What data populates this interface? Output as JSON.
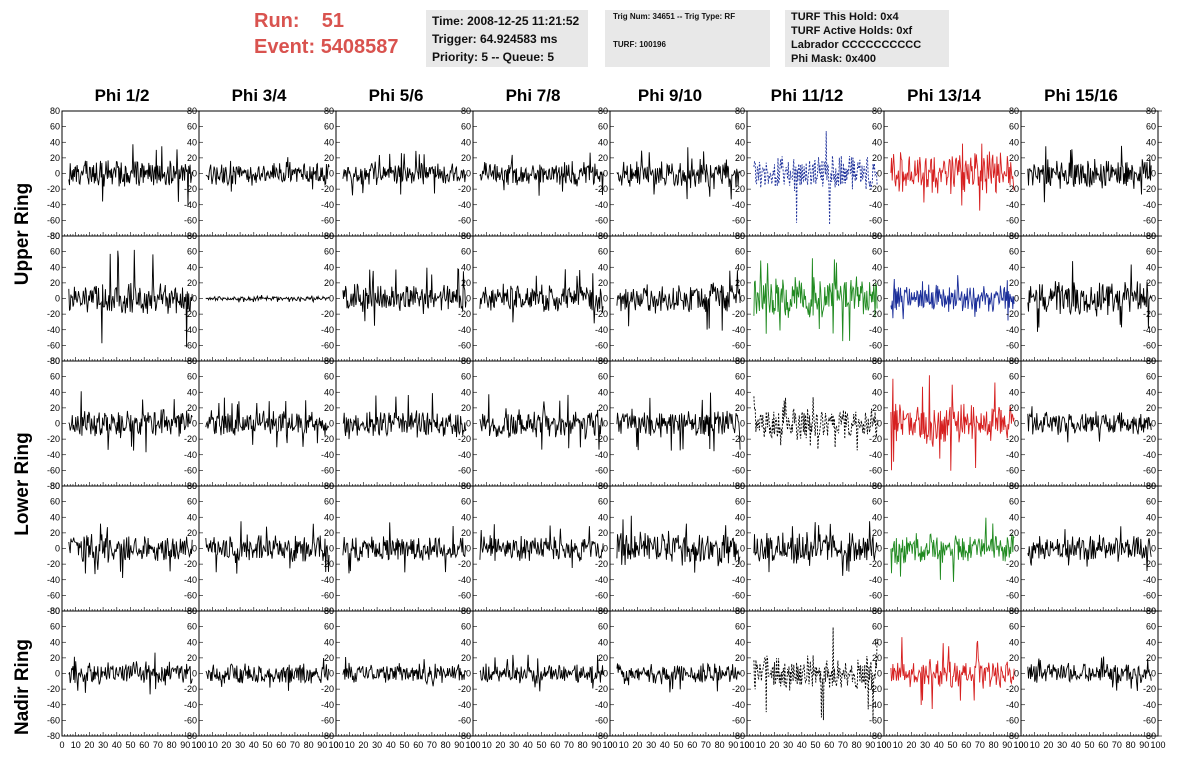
{
  "run": {
    "run_label": "Run:",
    "run_value": "51",
    "event_label": "Event:",
    "event_value": "5408587"
  },
  "info1": {
    "time": "Time: 2008-12-25 11:21:52",
    "trigger": "Trigger: 64.924583 ms",
    "priority": "Priority: 5 -- Queue: 5"
  },
  "info2": {
    "trig": "Trig Num: 34651 -- Trig Type: RF",
    "turf": "TURF: 100196"
  },
  "info3": {
    "hold": "TURF This Hold: 0x4",
    "active": "TURF Active Holds: 0xf",
    "labrador": "Labrador CCCCCCCCCC",
    "mask": "Phi Mask: 0x400"
  },
  "columns": [
    "Phi 1/2",
    "Phi 3/4",
    "Phi 5/6",
    "Phi 7/8",
    "Phi 9/10",
    "Phi 11/12",
    "Phi 13/14",
    "Phi 15/16"
  ],
  "rings": [
    "Upper Ring",
    "Lower Ring",
    "Nadir Ring"
  ],
  "chart_data": {
    "type": "line",
    "layout": "grid of 5 rows x 8 columns of waveform panels",
    "rows": [
      "Upper Ring",
      "Upper Ring",
      "Lower Ring",
      "Lower Ring",
      "Nadir Ring"
    ],
    "columns": [
      "Phi 1/2",
      "Phi 3/4",
      "Phi 5/6",
      "Phi 7/8",
      "Phi 9/10",
      "Phi 11/12",
      "Phi 13/14",
      "Phi 15/16"
    ],
    "xlim": [
      0,
      100
    ],
    "ylim": [
      -80,
      80
    ],
    "x_ticks": [
      "0",
      "10",
      "20",
      "30",
      "40",
      "50",
      "60",
      "70",
      "80",
      "90",
      "100"
    ],
    "y_ticks": [
      "80",
      "60",
      "40",
      "20",
      "0",
      "-20",
      "-40",
      "-60",
      "-80"
    ],
    "trace_colors": {
      "normal": "#000000",
      "blue": "#1c2f9a",
      "red": "#d62020",
      "green": "#208a20"
    },
    "panels": [
      {
        "row": 0,
        "col": 0,
        "amp": 14,
        "spike": 42,
        "color": "normal",
        "style": "solid"
      },
      {
        "row": 0,
        "col": 1,
        "amp": 12,
        "spike": 28,
        "color": "normal",
        "style": "solid"
      },
      {
        "row": 0,
        "col": 2,
        "amp": 11,
        "spike": 30,
        "color": "normal",
        "style": "solid"
      },
      {
        "row": 0,
        "col": 3,
        "amp": 12,
        "spike": 30,
        "color": "normal",
        "style": "solid"
      },
      {
        "row": 0,
        "col": 4,
        "amp": 15,
        "spike": 34,
        "color": "normal",
        "style": "solid"
      },
      {
        "row": 0,
        "col": 5,
        "amp": 18,
        "spike": 75,
        "color": "blue",
        "style": "dashed"
      },
      {
        "row": 0,
        "col": 6,
        "amp": 22,
        "spike": 52,
        "color": "red",
        "style": "solid"
      },
      {
        "row": 0,
        "col": 7,
        "amp": 15,
        "spike": 38,
        "color": "normal",
        "style": "solid"
      },
      {
        "row": 1,
        "col": 0,
        "amp": 16,
        "spike": 72,
        "color": "normal",
        "style": "solid"
      },
      {
        "row": 1,
        "col": 1,
        "amp": 2,
        "spike": 5,
        "color": "normal",
        "style": "solid"
      },
      {
        "row": 1,
        "col": 2,
        "amp": 15,
        "spike": 40,
        "color": "normal",
        "style": "solid"
      },
      {
        "row": 1,
        "col": 3,
        "amp": 14,
        "spike": 40,
        "color": "normal",
        "style": "solid"
      },
      {
        "row": 1,
        "col": 4,
        "amp": 16,
        "spike": 45,
        "color": "normal",
        "style": "solid"
      },
      {
        "row": 1,
        "col": 5,
        "amp": 22,
        "spike": 55,
        "color": "green",
        "style": "solid"
      },
      {
        "row": 1,
        "col": 6,
        "amp": 14,
        "spike": 30,
        "color": "blue",
        "style": "solid"
      },
      {
        "row": 1,
        "col": 7,
        "amp": 18,
        "spike": 48,
        "color": "normal",
        "style": "solid"
      },
      {
        "row": 2,
        "col": 0,
        "amp": 14,
        "spike": 42,
        "color": "normal",
        "style": "solid"
      },
      {
        "row": 2,
        "col": 1,
        "amp": 13,
        "spike": 35,
        "color": "normal",
        "style": "solid"
      },
      {
        "row": 2,
        "col": 2,
        "amp": 15,
        "spike": 40,
        "color": "normal",
        "style": "solid"
      },
      {
        "row": 2,
        "col": 3,
        "amp": 15,
        "spike": 38,
        "color": "normal",
        "style": "solid"
      },
      {
        "row": 2,
        "col": 4,
        "amp": 14,
        "spike": 42,
        "color": "normal",
        "style": "solid"
      },
      {
        "row": 2,
        "col": 5,
        "amp": 16,
        "spike": 38,
        "color": "normal",
        "style": "dashed"
      },
      {
        "row": 2,
        "col": 6,
        "amp": 22,
        "spike": 62,
        "color": "red",
        "style": "solid"
      },
      {
        "row": 2,
        "col": 7,
        "amp": 12,
        "spike": 28,
        "color": "normal",
        "style": "solid"
      },
      {
        "row": 3,
        "col": 0,
        "amp": 14,
        "spike": 38,
        "color": "normal",
        "style": "solid"
      },
      {
        "row": 3,
        "col": 1,
        "amp": 14,
        "spike": 35,
        "color": "normal",
        "style": "solid"
      },
      {
        "row": 3,
        "col": 2,
        "amp": 13,
        "spike": 34,
        "color": "normal",
        "style": "solid"
      },
      {
        "row": 3,
        "col": 3,
        "amp": 13,
        "spike": 32,
        "color": "normal",
        "style": "solid"
      },
      {
        "row": 3,
        "col": 4,
        "amp": 17,
        "spike": 42,
        "color": "normal",
        "style": "solid"
      },
      {
        "row": 3,
        "col": 5,
        "amp": 16,
        "spike": 40,
        "color": "normal",
        "style": "solid"
      },
      {
        "row": 3,
        "col": 6,
        "amp": 15,
        "spike": 45,
        "color": "green",
        "style": "solid"
      },
      {
        "row": 3,
        "col": 7,
        "amp": 13,
        "spike": 30,
        "color": "normal",
        "style": "solid"
      },
      {
        "row": 4,
        "col": 0,
        "amp": 12,
        "spike": 28,
        "color": "normal",
        "style": "solid"
      },
      {
        "row": 4,
        "col": 1,
        "amp": 10,
        "spike": 24,
        "color": "normal",
        "style": "solid"
      },
      {
        "row": 4,
        "col": 2,
        "amp": 10,
        "spike": 22,
        "color": "normal",
        "style": "solid"
      },
      {
        "row": 4,
        "col": 3,
        "amp": 10,
        "spike": 24,
        "color": "normal",
        "style": "solid"
      },
      {
        "row": 4,
        "col": 4,
        "amp": 11,
        "spike": 26,
        "color": "normal",
        "style": "solid"
      },
      {
        "row": 4,
        "col": 5,
        "amp": 18,
        "spike": 60,
        "color": "normal",
        "style": "dashed"
      },
      {
        "row": 4,
        "col": 6,
        "amp": 14,
        "spike": 48,
        "color": "red",
        "style": "solid"
      },
      {
        "row": 4,
        "col": 7,
        "amp": 10,
        "spike": 24,
        "color": "normal",
        "style": "solid"
      }
    ]
  }
}
